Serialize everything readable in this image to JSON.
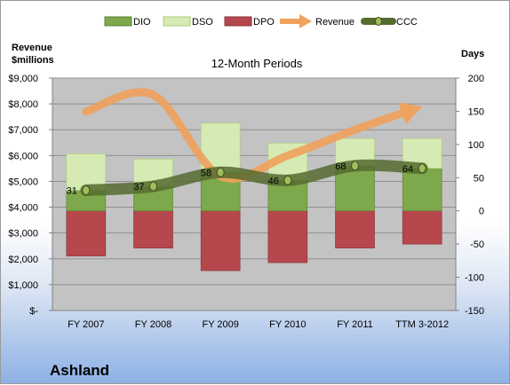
{
  "company": "Ashland",
  "colors": {
    "dio": "#7da84b",
    "dso": "#d6ebb3",
    "dpo": "#b6474d",
    "revenue": "#f0a15c",
    "ccc": "#556b2f",
    "plot_bg": "#c3c3c3"
  },
  "chart_data": {
    "type": "bar",
    "title": "12-Month Periods",
    "ylabel_left": "Revenue\n$millions",
    "ylabel_right": "Days",
    "categories": [
      "FY 2007",
      "FY 2008",
      "FY 2009",
      "FY 2010",
      "FY 2011",
      "TTM 3-2012"
    ],
    "left_axis": {
      "min": 0,
      "max": 9000,
      "step": 1000,
      "tick_labels": [
        "$-",
        "$1,000",
        "$2,000",
        "$3,000",
        "$4,000",
        "$5,000",
        "$6,000",
        "$7,000",
        "$8,000",
        "$9,000"
      ]
    },
    "right_axis": {
      "min": -150,
      "max": 200,
      "step": 50,
      "tick_labels": [
        "-150",
        "-100",
        "-50",
        "0",
        "50",
        "100",
        "150",
        "200"
      ]
    },
    "grid": true,
    "legend_position": "top",
    "legend": [
      "DIO",
      "DSO",
      "DPO",
      "Revenue",
      "CCC"
    ],
    "series": [
      {
        "name": "DIO",
        "type": "stacked-bar",
        "axis": "right",
        "values": [
          31,
          37,
          58,
          46,
          68,
          64
        ]
      },
      {
        "name": "DSO",
        "type": "stacked-bar",
        "axis": "right",
        "values": [
          55,
          41,
          74,
          56,
          41,
          45
        ]
      },
      {
        "name": "DPO",
        "type": "bar-negative",
        "axis": "right",
        "values": [
          -68,
          -56,
          -90,
          -78,
          -56,
          -50
        ]
      },
      {
        "name": "Revenue",
        "type": "line",
        "axis": "left",
        "values": [
          7700,
          8350,
          5200,
          6000,
          7000,
          7900
        ]
      },
      {
        "name": "CCC",
        "type": "line",
        "axis": "right",
        "values": [
          31,
          37,
          58,
          46,
          68,
          64
        ]
      }
    ],
    "ccc_labels": [
      "31",
      "37",
      "58",
      "46",
      "68",
      "64"
    ]
  }
}
